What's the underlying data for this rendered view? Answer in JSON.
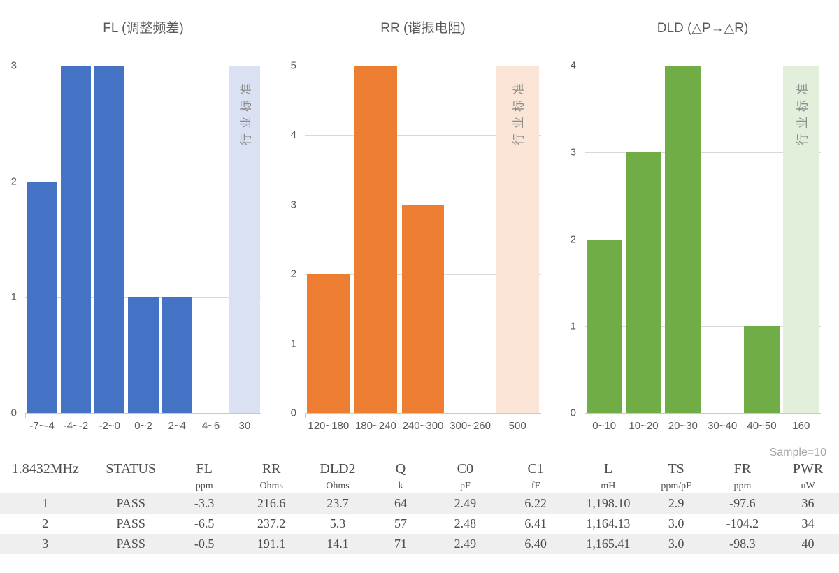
{
  "chart_data": [
    {
      "type": "bar",
      "title": "FL (调整频差)",
      "categories": [
        "-7~-4",
        "-4~-2",
        "-2~0",
        "0~2",
        "2~4",
        "4~6",
        "30"
      ],
      "values": [
        2,
        3,
        3,
        1,
        1,
        0,
        null
      ],
      "y_ticks": [
        0,
        1,
        2,
        3
      ],
      "ylim": [
        0,
        3
      ],
      "grid": true,
      "bar_color": "#4472C4",
      "reference_band": {
        "index": 6,
        "label": "行业标准",
        "color": "#D9E1F2"
      }
    },
    {
      "type": "bar",
      "title": "RR (谐振电阻)",
      "categories": [
        "120~180",
        "180~240",
        "240~300",
        "300~260",
        "500"
      ],
      "values": [
        2,
        5,
        3,
        0,
        null
      ],
      "y_ticks": [
        0,
        1,
        2,
        3,
        4,
        5
      ],
      "ylim": [
        0,
        5
      ],
      "grid": true,
      "bar_color": "#ED7D31",
      "reference_band": {
        "index": 4,
        "label": "行业标准",
        "color": "#FBE5D6"
      }
    },
    {
      "type": "bar",
      "title": "DLD (△P→△R)",
      "categories": [
        "0~10",
        "10~20",
        "20~30",
        "30~40",
        "40~50",
        "160"
      ],
      "values": [
        2,
        3,
        4,
        0,
        1,
        null
      ],
      "y_ticks": [
        0,
        1,
        2,
        3,
        4
      ],
      "ylim": [
        0,
        4
      ],
      "grid": true,
      "bar_color": "#70AD47",
      "reference_band": {
        "index": 5,
        "label": "行业标准",
        "color": "#E2EFDA"
      }
    }
  ],
  "table": {
    "sample_label": "Sample=10",
    "columns": [
      {
        "label": "1.8432MHz",
        "unit": ""
      },
      {
        "label": "STATUS",
        "unit": ""
      },
      {
        "label": "FL",
        "unit": "ppm"
      },
      {
        "label": "RR",
        "unit": "Ohms"
      },
      {
        "label": "DLD2",
        "unit": "Ohms"
      },
      {
        "label": "Q",
        "unit": "k"
      },
      {
        "label": "C0",
        "unit": "pF"
      },
      {
        "label": "C1",
        "unit": "fF"
      },
      {
        "label": "L",
        "unit": "mH"
      },
      {
        "label": "TS",
        "unit": "ppm/pF"
      },
      {
        "label": "FR",
        "unit": "ppm"
      },
      {
        "label": "PWR",
        "unit": "uW"
      }
    ],
    "rows": [
      [
        "1",
        "PASS",
        "-3.3",
        "216.6",
        "23.7",
        "64",
        "2.49",
        "6.22",
        "1,198.10",
        "2.9",
        "-97.6",
        "36"
      ],
      [
        "2",
        "PASS",
        "-6.5",
        "237.2",
        "5.3",
        "57",
        "2.48",
        "6.41",
        "1,164.13",
        "3.0",
        "-104.2",
        "34"
      ],
      [
        "3",
        "PASS",
        "-0.5",
        "191.1",
        "14.1",
        "71",
        "2.49",
        "6.40",
        "1,165.41",
        "3.0",
        "-98.3",
        "40"
      ]
    ]
  },
  "colors": {
    "gridline": "#D9D9D9",
    "axis": "#C9C9C9",
    "chart_text": "#595959",
    "reference_text": "#8C8C8C",
    "table_text": "#4D4D4D",
    "row_stripe": "#EFEFEF",
    "sample_text": "#A6A6A6"
  }
}
